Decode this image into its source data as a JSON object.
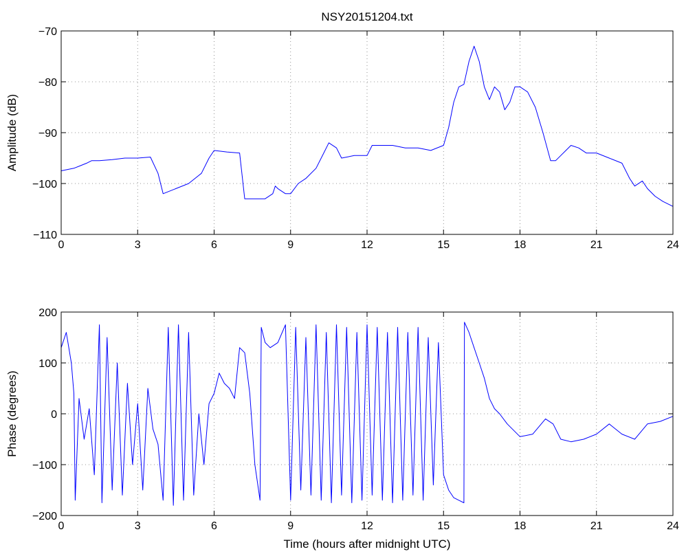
{
  "title": "NSY20151204.txt",
  "chart_data": [
    {
      "type": "line",
      "title": "NSY20151204.txt",
      "xlabel": "",
      "ylabel": "Amplitude (dB)",
      "xlim": [
        0,
        24
      ],
      "ylim": [
        -110,
        -70
      ],
      "xticks": [
        "0",
        "3",
        "6",
        "9",
        "12",
        "15",
        "18",
        "21",
        "24"
      ],
      "yticks": [
        "−70",
        "−80",
        "−90",
        "−100",
        "−110"
      ],
      "ytick_values": [
        -70,
        -80,
        -90,
        -100,
        -110
      ],
      "grid": true,
      "color": "#0000ff",
      "series": [
        {
          "x": [
            0,
            0.5,
            0.75,
            1.0,
            1.2,
            1.5,
            2.0,
            2.5,
            3.0,
            3.5,
            3.8,
            4.0,
            4.5,
            5.0,
            5.5,
            5.8,
            6.0,
            6.5,
            7.0,
            7.2,
            7.5,
            8.0,
            8.3,
            8.4,
            8.5,
            8.8,
            9.0,
            9.3,
            9.6,
            10.0,
            10.3,
            10.5,
            10.8,
            11.0,
            11.5,
            12.0,
            12.2,
            12.5,
            13.0,
            13.5,
            14.0,
            14.5,
            15.0,
            15.2,
            15.4,
            15.6,
            15.8,
            16.0,
            16.2,
            16.4,
            16.6,
            16.8,
            17.0,
            17.2,
            17.4,
            17.6,
            17.8,
            18.0,
            18.3,
            18.6,
            18.9,
            19.2,
            19.4,
            19.6,
            19.8,
            20.0,
            20.3,
            20.6,
            21.0,
            21.5,
            22.0,
            22.3,
            22.5,
            22.8,
            23.0,
            23.3,
            23.6,
            24.0
          ],
          "y": [
            -97.5,
            -97,
            -96.5,
            -96,
            -95.5,
            -95.5,
            -95.3,
            -95,
            -95,
            -94.8,
            -98,
            -102,
            -101,
            -100,
            -98,
            -95,
            -93.5,
            -93.8,
            -94,
            -103,
            -103,
            -103,
            -102,
            -100.5,
            -101,
            -102,
            -102,
            -100,
            -99,
            -97,
            -94,
            -92,
            -93,
            -95,
            -94.5,
            -94.5,
            -92.5,
            -92.5,
            -92.5,
            -93,
            -93,
            -93.5,
            -92.5,
            -89,
            -84,
            -81,
            -80.5,
            -76,
            -73,
            -76,
            -81,
            -83.5,
            -81,
            -82,
            -85.5,
            -84,
            -81,
            -81,
            -82,
            -85,
            -90,
            -95.5,
            -95.5,
            -94.5,
            -93.5,
            -92.5,
            -93,
            -94,
            -94,
            -95,
            -96,
            -99,
            -100.5,
            -99.5,
            -101,
            -102.5,
            -103.5,
            -104.5
          ]
        }
      ]
    },
    {
      "type": "line",
      "title": "",
      "xlabel": "Time (hours after midnight UTC)",
      "ylabel": "Phase (degrees)",
      "xlim": [
        0,
        24
      ],
      "ylim": [
        -200,
        200
      ],
      "xticks": [
        "0",
        "3",
        "6",
        "9",
        "12",
        "15",
        "18",
        "21",
        "24"
      ],
      "yticks": [
        "200",
        "100",
        "0",
        "−100",
        "−200"
      ],
      "ytick_values": [
        200,
        100,
        0,
        -100,
        -200
      ],
      "grid": true,
      "color": "#0000ff",
      "series": [
        {
          "x": [
            0,
            0.2,
            0.4,
            0.5,
            0.55,
            0.7,
            0.9,
            1.1,
            1.3,
            1.5,
            1.6,
            1.8,
            2.0,
            2.2,
            2.4,
            2.6,
            2.8,
            3.0,
            3.2,
            3.4,
            3.6,
            3.8,
            4.0,
            4.2,
            4.4,
            4.6,
            4.8,
            5.0,
            5.2,
            5.4,
            5.6,
            5.8,
            6.0,
            6.2,
            6.4,
            6.6,
            6.8,
            7.0,
            7.2,
            7.4,
            7.6,
            7.8,
            7.85,
            8.0,
            8.2,
            8.5,
            8.8,
            9.0,
            9.2,
            9.4,
            9.6,
            9.8,
            10.0,
            10.2,
            10.4,
            10.6,
            10.8,
            11.0,
            11.2,
            11.4,
            11.6,
            11.8,
            12.0,
            12.2,
            12.4,
            12.6,
            12.8,
            13.0,
            13.2,
            13.4,
            13.6,
            13.8,
            14.0,
            14.2,
            14.4,
            14.6,
            14.8,
            15.0,
            15.2,
            15.4,
            15.6,
            15.8,
            15.82,
            16.0,
            16.2,
            16.4,
            16.6,
            16.8,
            17.0,
            17.2,
            17.5,
            18.0,
            18.5,
            19.0,
            19.3,
            19.6,
            20.0,
            20.5,
            21.0,
            21.5,
            22.0,
            22.5,
            23.0,
            23.5,
            24.0
          ],
          "y": [
            130,
            160,
            100,
            40,
            -170,
            30,
            -50,
            10,
            -120,
            175,
            -175,
            150,
            -150,
            100,
            -160,
            60,
            -100,
            20,
            -150,
            50,
            -30,
            -60,
            -170,
            170,
            -180,
            175,
            -170,
            160,
            -160,
            0,
            -100,
            20,
            40,
            80,
            60,
            50,
            30,
            130,
            120,
            40,
            -100,
            -170,
            170,
            140,
            130,
            140,
            175,
            -170,
            170,
            -150,
            150,
            -160,
            175,
            -170,
            160,
            -175,
            175,
            -160,
            170,
            -175,
            160,
            -170,
            175,
            -160,
            170,
            -170,
            160,
            -175,
            170,
            -170,
            160,
            -160,
            170,
            -170,
            150,
            -140,
            140,
            -120,
            -150,
            -165,
            -170,
            -175,
            180,
            160,
            130,
            100,
            70,
            30,
            10,
            0,
            -20,
            -45,
            -40,
            -10,
            -20,
            -50,
            -55,
            -50,
            -40,
            -20,
            -40,
            -50,
            -20,
            -15,
            -5
          ]
        }
      ]
    }
  ]
}
